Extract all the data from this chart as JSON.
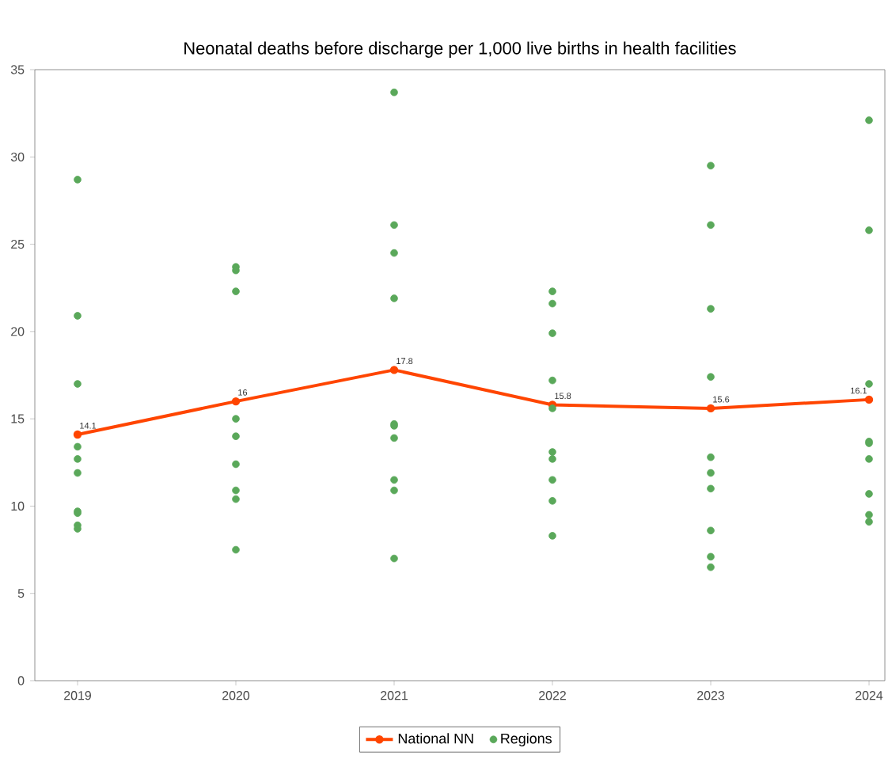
{
  "chart_data": {
    "type": "line",
    "title": "Neonatal deaths before discharge per 1,000 live births in health facilities",
    "x": [
      2019,
      2020,
      2021,
      2022,
      2023,
      2024
    ],
    "xlim": [
      2018.73,
      2024.1
    ],
    "xticks": [
      2019,
      2020,
      2021,
      2022,
      2023,
      2024
    ],
    "ylim": [
      0,
      35
    ],
    "yticks": [
      0,
      5,
      10,
      15,
      20,
      25,
      30,
      35
    ],
    "legend": "bottom",
    "series": [
      {
        "name": "National NN",
        "color": "#ff4500",
        "marker": "circle",
        "data_labels": true,
        "values": [
          14.1,
          16,
          17.8,
          15.8,
          15.6,
          16.1
        ]
      },
      {
        "name": "Regions",
        "type": "scatter",
        "color": "#5aa85a",
        "marker": "circle",
        "x": [
          2019,
          2019,
          2019,
          2019,
          2019,
          2019,
          2019,
          2019,
          2019,
          2019,
          2020,
          2020,
          2020,
          2020,
          2020,
          2020,
          2020,
          2020,
          2020,
          2021,
          2021,
          2021,
          2021,
          2021,
          2021,
          2021,
          2021,
          2021,
          2021,
          2022,
          2022,
          2022,
          2022,
          2022,
          2022,
          2022,
          2022,
          2022,
          2022,
          2023,
          2023,
          2023,
          2023,
          2023,
          2023,
          2023,
          2023,
          2023,
          2023,
          2024,
          2024,
          2024,
          2024,
          2024,
          2024,
          2024,
          2024,
          2024
        ],
        "values": [
          28.7,
          20.9,
          17.0,
          13.4,
          12.7,
          11.9,
          9.7,
          9.6,
          8.9,
          8.7,
          23.7,
          23.5,
          22.3,
          15.0,
          14.0,
          12.4,
          10.9,
          10.4,
          7.5,
          33.7,
          26.1,
          24.5,
          21.9,
          14.7,
          14.6,
          13.9,
          11.5,
          10.9,
          7.0,
          22.3,
          21.6,
          19.9,
          17.2,
          15.6,
          13.1,
          12.7,
          11.5,
          10.3,
          8.3,
          29.5,
          26.1,
          21.3,
          17.4,
          12.8,
          11.9,
          11.0,
          8.6,
          7.1,
          6.5,
          32.1,
          25.8,
          17.0,
          13.7,
          13.6,
          12.7,
          10.7,
          9.5,
          9.1
        ]
      }
    ]
  }
}
